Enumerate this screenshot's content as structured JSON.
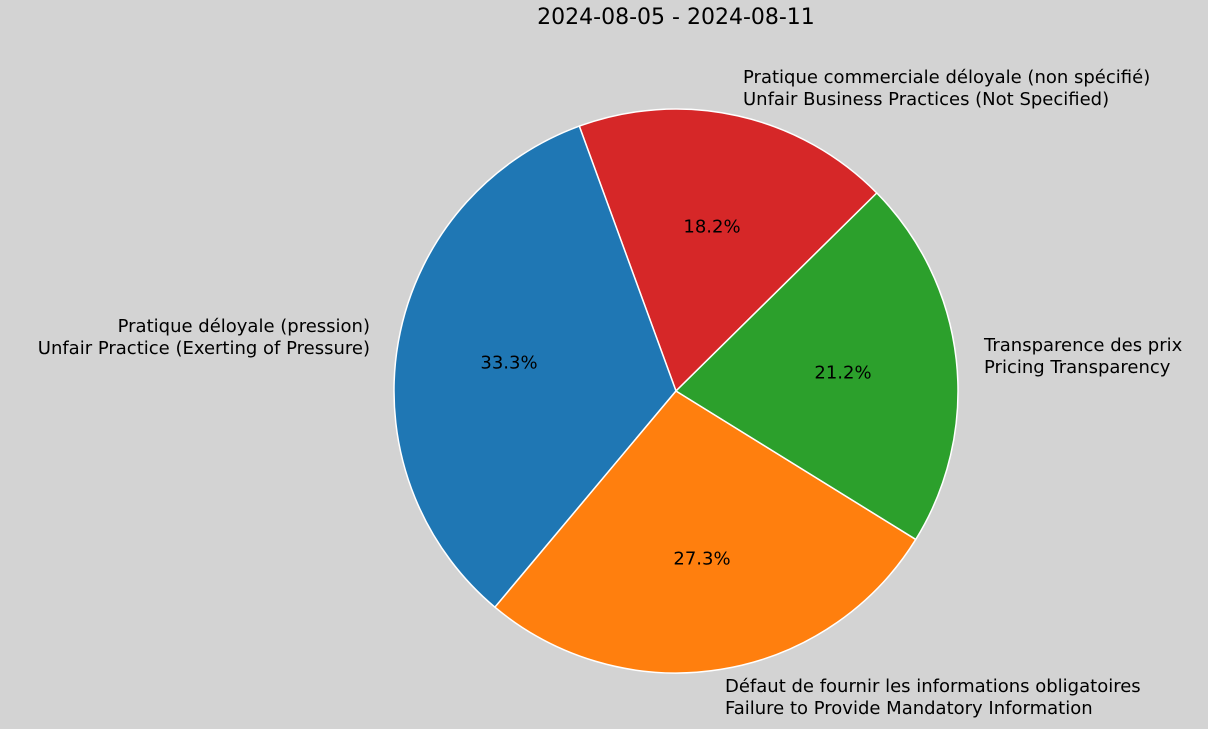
{
  "chart_data": {
    "type": "pie",
    "title": "2024-08-05 - 2024-08-11",
    "categories": [
      "Pratique commerciale déloyale (non spécifié)\nUnfair Business Practices (Not Specified)",
      "Pratique déloyale (pression)\nUnfair Practice (Exerting of Pressure)",
      "Défaut de fournir les informations obligatoires\nFailure to Provide Mandatory Information",
      "Transparence des prix\nPricing Transparency"
    ],
    "values": [
      6,
      11,
      9,
      7
    ],
    "percentages": [
      "18.2%",
      "33.3%",
      "27.3%",
      "21.2%"
    ],
    "colors": [
      "#d62728",
      "#1f77b4",
      "#ff7f0e",
      "#2ca02c"
    ],
    "start_angle_deg": 44.6,
    "direction": "counterclockwise",
    "legend": "none"
  },
  "title": "2024-08-05 - 2024-08-11",
  "labels": {
    "red": {
      "fr": "Pratique commerciale déloyale (non spécifié)",
      "en": "Unfair Business Practices (Not Specified)",
      "pct": "18.2%"
    },
    "blue": {
      "fr": "Pratique déloyale (pression)",
      "en": "Unfair Practice (Exerting of Pressure)",
      "pct": "33.3%"
    },
    "orange": {
      "fr": "Défaut de fournir les informations obligatoires",
      "en": "Failure to Provide Mandatory Information",
      "pct": "27.3%"
    },
    "green": {
      "fr": "Transparence des prix",
      "en": "Pricing Transparency",
      "pct": "21.2%"
    }
  }
}
